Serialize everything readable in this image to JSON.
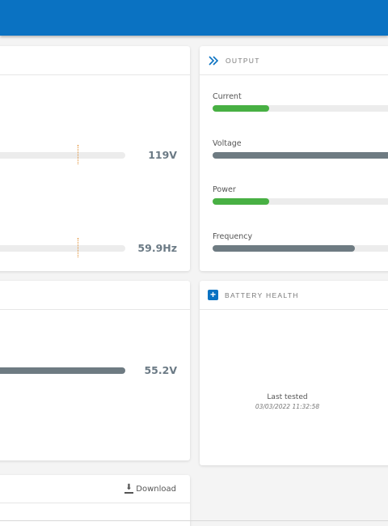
{
  "input_card": {
    "voltage_value": "119V",
    "voltage_level": 0.62,
    "frequency_value": "59.9Hz",
    "frequency_level": 0.62
  },
  "battery_card": {
    "voltage_value": "55.2V",
    "voltage_level": 1.0
  },
  "output_card": {
    "title": "OUTPUT",
    "metrics": [
      {
        "label": "Current",
        "level": 0.32,
        "color": "#48b043"
      },
      {
        "label": "Voltage",
        "level": 1.0,
        "color": "#6e7b82"
      },
      {
        "label": "Power",
        "level": 0.32,
        "color": "#48b043"
      },
      {
        "label": "Frequency",
        "level": 0.8,
        "color": "#6e7b82"
      }
    ]
  },
  "battery_health": {
    "title": "BATTERY HEALTH",
    "last_tested_label": "Last tested",
    "last_tested_date": "03/03/2022 11:32:58"
  },
  "log_card": {
    "download_label": "Download"
  },
  "colors": {
    "accent": "#0a72c2",
    "good": "#48b043",
    "neutral": "#6e7b82"
  }
}
